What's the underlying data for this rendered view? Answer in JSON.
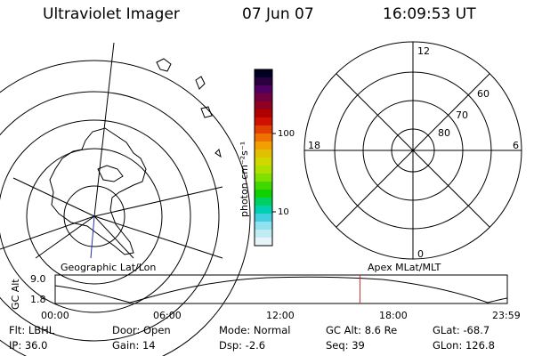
{
  "header": {
    "title": "Ultraviolet Imager",
    "date": "07 Jun 07",
    "time": "16:09:53 UT"
  },
  "geo_panel": {
    "label": "Geographic Lat/Lon"
  },
  "colorbar": {
    "unit_label": "photon cm⁻²s⁻¹",
    "ticks": [
      "100",
      "10"
    ],
    "colors": [
      "#000020",
      "#2a0040",
      "#500060",
      "#700040",
      "#900020",
      "#b00000",
      "#d01000",
      "#e04000",
      "#f07000",
      "#f0a000",
      "#e0c000",
      "#d0d800",
      "#b0e000",
      "#80e000",
      "#40d800",
      "#10d000",
      "#00d060",
      "#00d0b0",
      "#40d0e0",
      "#90e0f0",
      "#c0ecf4",
      "#e8f4f8"
    ]
  },
  "polar_panel": {
    "label": "Apex MLat/MLT",
    "mlt_labels": {
      "top": "12",
      "bottom": "0",
      "left": "18",
      "right": "6"
    },
    "lat_labels": [
      "60",
      "70",
      "80"
    ]
  },
  "timeline": {
    "y_title": "GC Alt",
    "y_ticks": [
      "9.0",
      "1.8"
    ],
    "x_ticks": [
      "00:00",
      "06:00",
      "12:00",
      "18:00",
      "23:59"
    ],
    "marker_time": "16:09:53",
    "marker_color": "#c03030"
  },
  "info": {
    "filter": "Flt: LBHL",
    "ip": "IP: 36.0",
    "door": "Door: Open",
    "gain": "Gain: 14",
    "mode": "Mode: Normal",
    "dsp": "Dsp:    -2.6",
    "gc_alt": "GC Alt: 8.6 Re",
    "seq": "Seq: 39",
    "glat": "GLat: -68.7",
    "glon": "GLon: 126.8"
  }
}
